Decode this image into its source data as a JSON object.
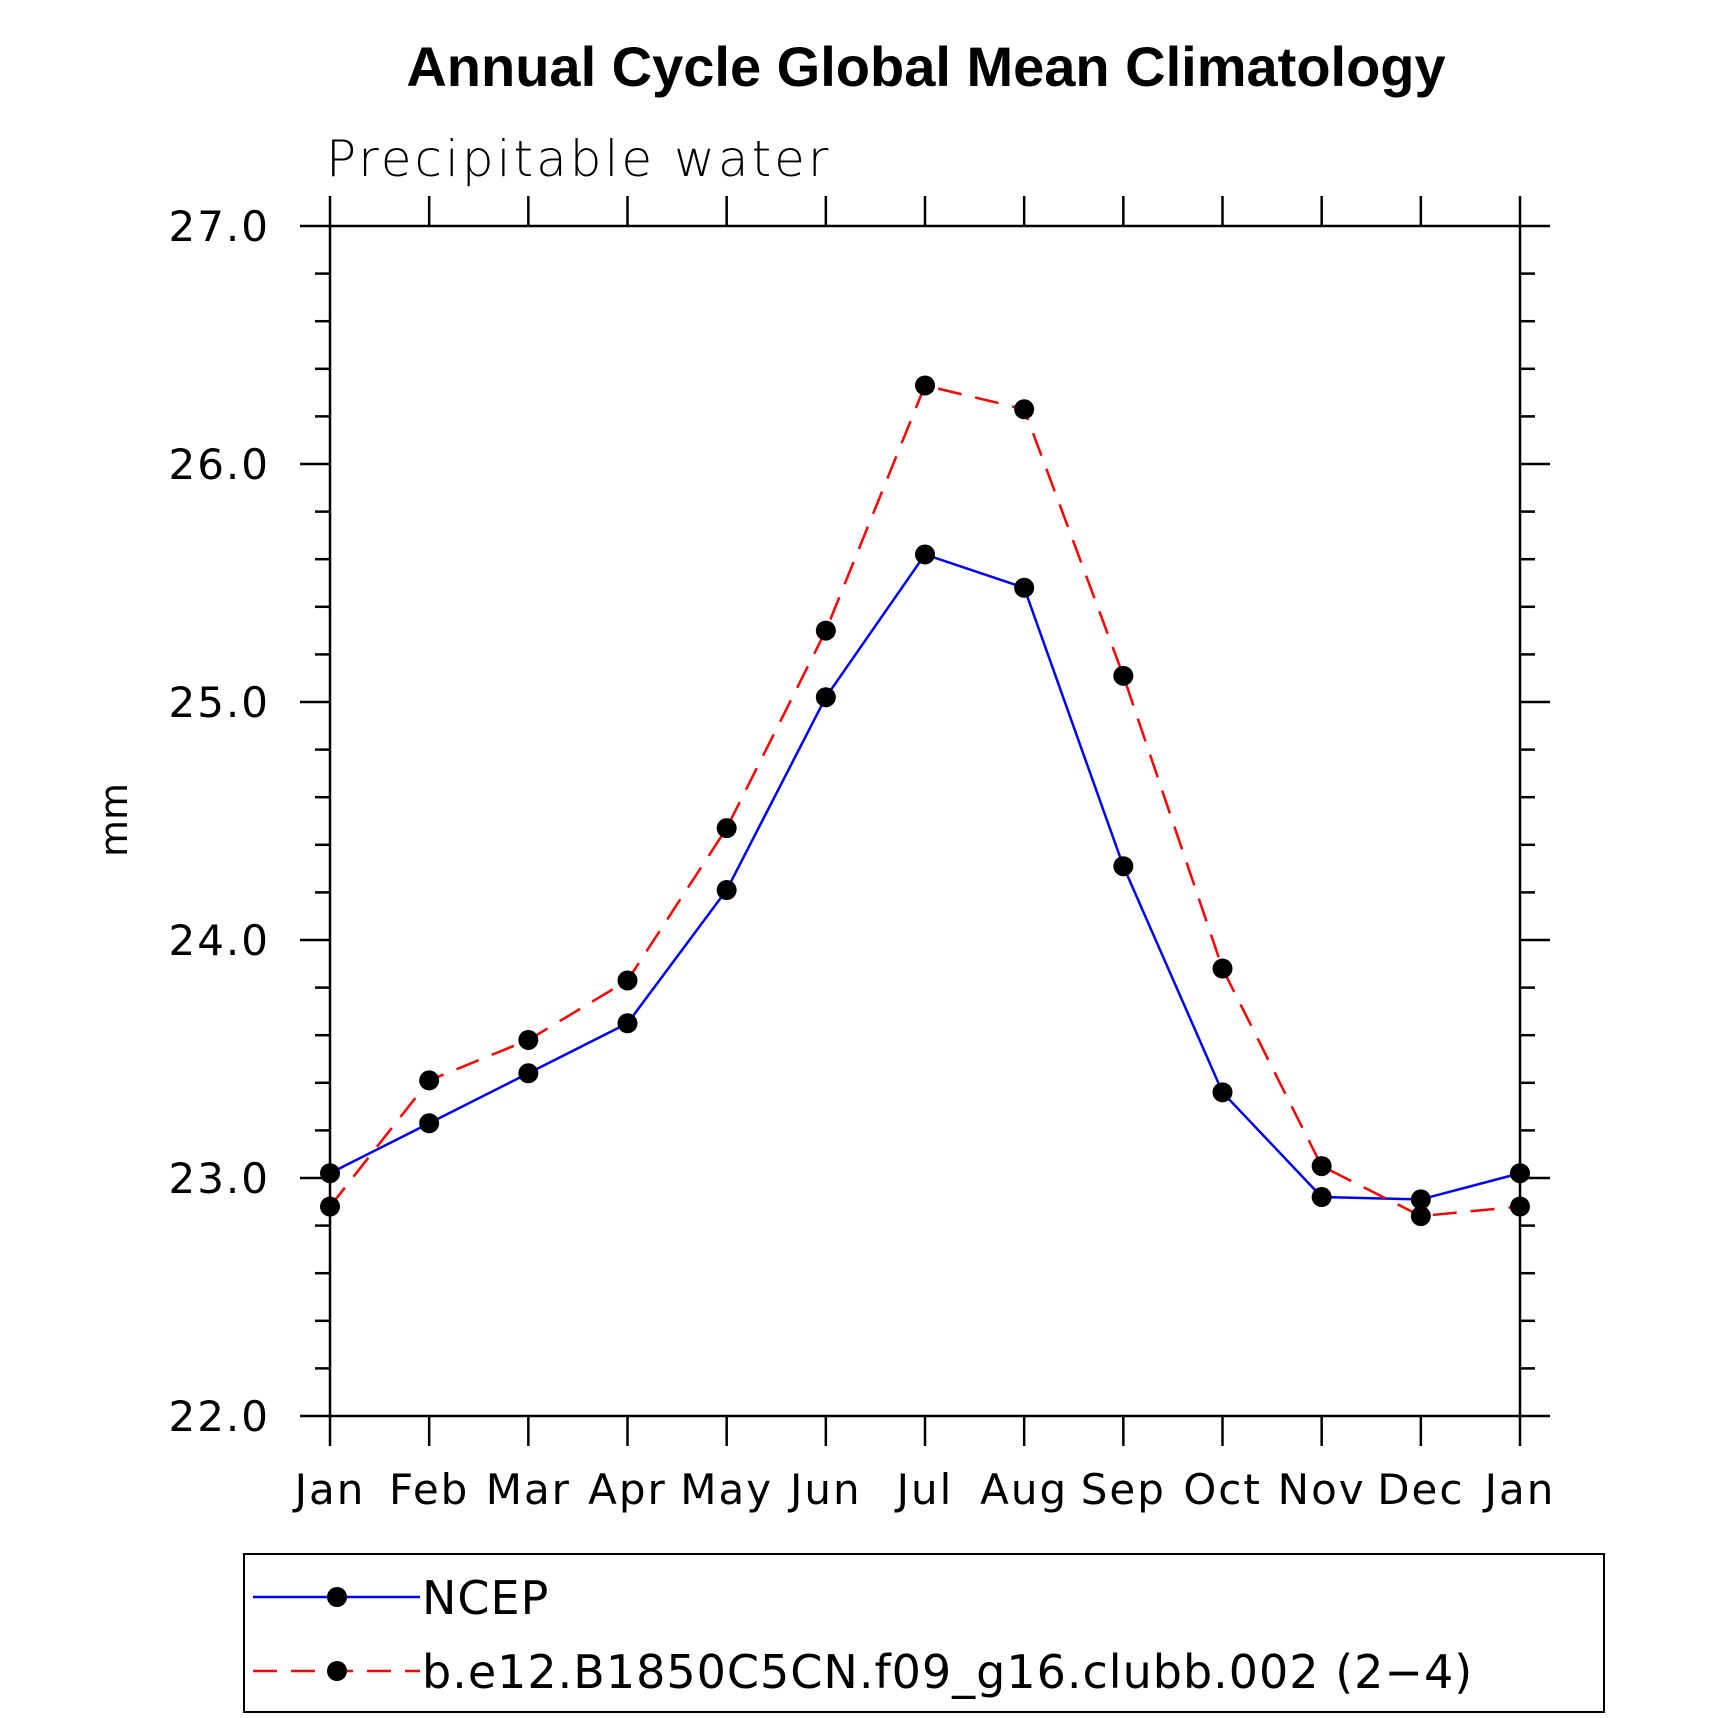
{
  "chart_data": {
    "type": "line",
    "title": "Annual Cycle Global Mean Climatology",
    "subtitle": "Precipitable water",
    "xlabel": "",
    "ylabel": "mm",
    "categories": [
      "Jan",
      "Feb",
      "Mar",
      "Apr",
      "May",
      "Jun",
      "Jul",
      "Aug",
      "Sep",
      "Oct",
      "Nov",
      "Dec",
      "Jan"
    ],
    "ylim": [
      22.0,
      27.0
    ],
    "yticks": [
      "22.0",
      "23.0",
      "24.0",
      "25.0",
      "26.0",
      "27.0"
    ],
    "grid": false,
    "legend_position": "bottom",
    "series": [
      {
        "name": "NCEP",
        "color": "#0000ff",
        "line_style": "solid",
        "marker": "filled-circle",
        "values": [
          23.02,
          23.23,
          23.44,
          23.65,
          24.21,
          25.02,
          25.62,
          25.48,
          24.31,
          23.36,
          22.92,
          22.91,
          23.02
        ]
      },
      {
        "name": "b.e12.B1850C5CN.f09_g16.clubb.002 (2−4)",
        "color": "#ff0000",
        "line_style": "dashed",
        "marker": "filled-circle",
        "values": [
          22.88,
          23.41,
          23.58,
          23.83,
          24.47,
          25.3,
          26.33,
          26.23,
          25.11,
          23.88,
          23.05,
          22.84,
          22.88
        ]
      }
    ]
  }
}
